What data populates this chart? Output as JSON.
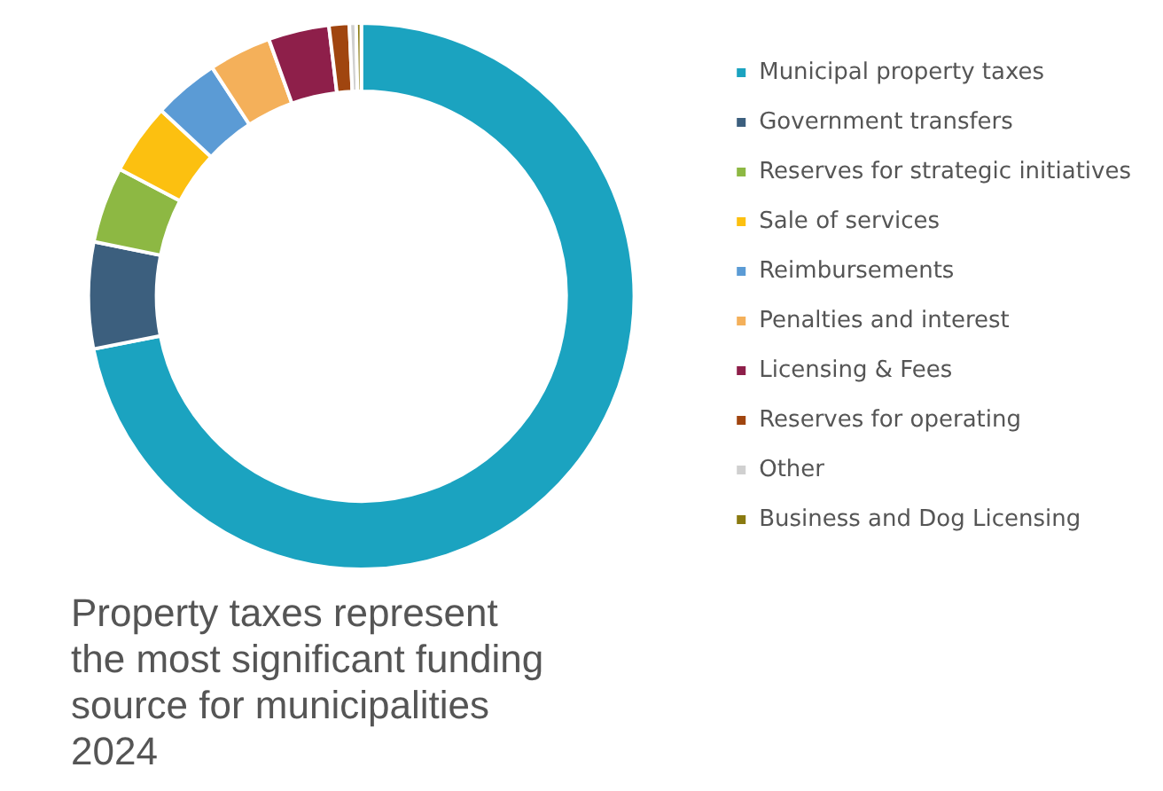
{
  "chart_data": {
    "type": "donut",
    "categories": [
      "Municipal property taxes",
      "Government transfers",
      "Reserves for strategic initiatives",
      "Sale of services",
      "Reimbursements",
      "Penalties and interest",
      "Licensing & Fees",
      "Reserves for operating",
      "Other",
      "Business and Dog Licensing"
    ],
    "values": [
      71.9,
      6.3,
      4.5,
      4.2,
      3.9,
      3.7,
      3.6,
      1.2,
      0.4,
      0.3
    ],
    "colors": [
      "#1ba3c0",
      "#3c5f7e",
      "#8db843",
      "#fcc010",
      "#5b9bd5",
      "#f4b05a",
      "#8e1f4a",
      "#a0450f",
      "#d0d0d0",
      "#8a7a10"
    ],
    "legend": "right",
    "annotations": [
      "Property taxes represent the most significant funding source for municipalities 2024"
    ]
  }
}
